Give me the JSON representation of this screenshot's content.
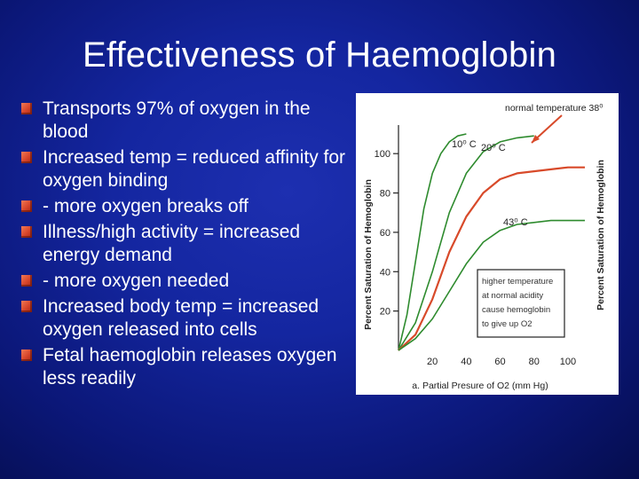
{
  "slide": {
    "title": "Effectiveness of Haemoglobin",
    "bullets": [
      "Transports 97% of oxygen in the blood",
      "Increased temp = reduced affinity for oxygen binding",
      "- more oxygen breaks off",
      "Illness/high activity = increased energy demand",
      "- more oxygen needed",
      "Increased body temp = increased oxygen released into cells",
      "Fetal haemoglobin releases oxygen less readily"
    ]
  },
  "chart_data": {
    "type": "line",
    "title": "",
    "xlabel": "a. Partial Presure of O2 (mm Hg)",
    "ylabel": "Percent Saturation of Hemoglobin",
    "ylabel_right": "Percent Saturation of Hemoglobin",
    "x_ticks": [
      "20",
      "40",
      "60",
      "80",
      "100"
    ],
    "y_ticks": [
      "20",
      "40",
      "60",
      "80",
      "100"
    ],
    "xlim": [
      0,
      110
    ],
    "ylim": [
      0,
      110
    ],
    "series": [
      {
        "name": "10⁰ C",
        "color": "#2e8b2e",
        "x": [
          0,
          5,
          10,
          15,
          20,
          25,
          30,
          35,
          40
        ],
        "y": [
          0,
          18,
          45,
          72,
          90,
          100,
          106,
          109,
          110
        ]
      },
      {
        "name": "20⁰ C",
        "color": "#2e8b2e",
        "x": [
          0,
          10,
          20,
          30,
          40,
          50,
          60,
          70,
          80
        ],
        "y": [
          0,
          14,
          40,
          70,
          90,
          101,
          106,
          108,
          109
        ]
      },
      {
        "name": "normal temperature 38⁰",
        "color": "#d84a2a",
        "x": [
          0,
          10,
          20,
          30,
          40,
          50,
          60,
          70,
          80,
          90,
          100,
          110
        ],
        "y": [
          0,
          8,
          26,
          50,
          68,
          80,
          87,
          90,
          91,
          92,
          93,
          93
        ]
      },
      {
        "name": "43⁰ C",
        "color": "#2e8b2e",
        "x": [
          0,
          10,
          20,
          30,
          40,
          50,
          60,
          70,
          80,
          90,
          100,
          110
        ],
        "y": [
          0,
          6,
          16,
          30,
          44,
          55,
          61,
          64,
          65,
          66,
          66,
          66
        ]
      }
    ],
    "annotation": {
      "lines": [
        "higher temperature",
        "at normal acidity",
        "cause hemoglobin",
        "to give up O2"
      ]
    }
  }
}
